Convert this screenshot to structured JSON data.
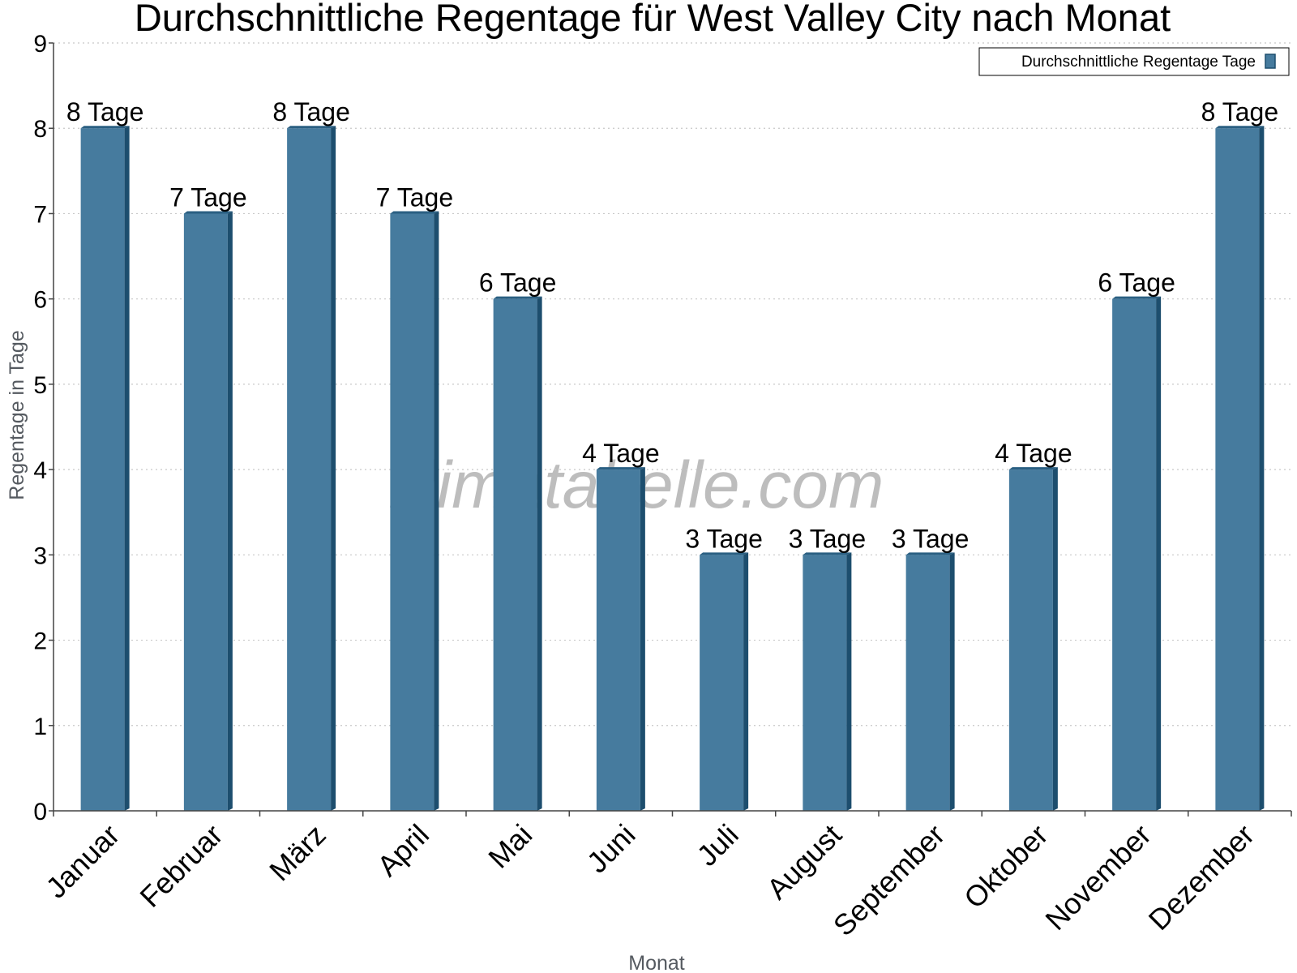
{
  "chart_data": {
    "type": "bar",
    "title": "Durchschnittliche Regentage für West Valley City nach Monat",
    "xlabel": "Monat",
    "ylabel": "Regentage in Tage",
    "categories": [
      "Januar",
      "Februar",
      "März",
      "April",
      "Mai",
      "Juni",
      "Juli",
      "August",
      "September",
      "Oktober",
      "November",
      "Dezember"
    ],
    "series": [
      {
        "name": "Durchschnittliche Regentage Tage",
        "values": [
          8,
          7,
          8,
          7,
          6,
          4,
          3,
          3,
          3,
          4,
          6,
          8
        ],
        "color": "#467b9e"
      }
    ],
    "data_labels": [
      "8 Tage",
      "7 Tage",
      "8 Tage",
      "7 Tage",
      "6 Tage",
      "4 Tage",
      "3 Tage",
      "3 Tage",
      "3 Tage",
      "4 Tage",
      "6 Tage",
      "8 Tage"
    ],
    "ylim": [
      0,
      9
    ],
    "yticks": [
      "0",
      "1",
      "2",
      "3",
      "4",
      "5",
      "6",
      "7",
      "8",
      "9"
    ],
    "grid": "horizontal-dotted",
    "legend_position": "top-right",
    "watermark": "klimatabelle.com",
    "colors": {
      "bar_face": "#467b9e",
      "bar_side": "#1d4e6e",
      "bar_top": "#2a5f82",
      "grid": "#c8c8c8",
      "axis": "#444444"
    }
  }
}
